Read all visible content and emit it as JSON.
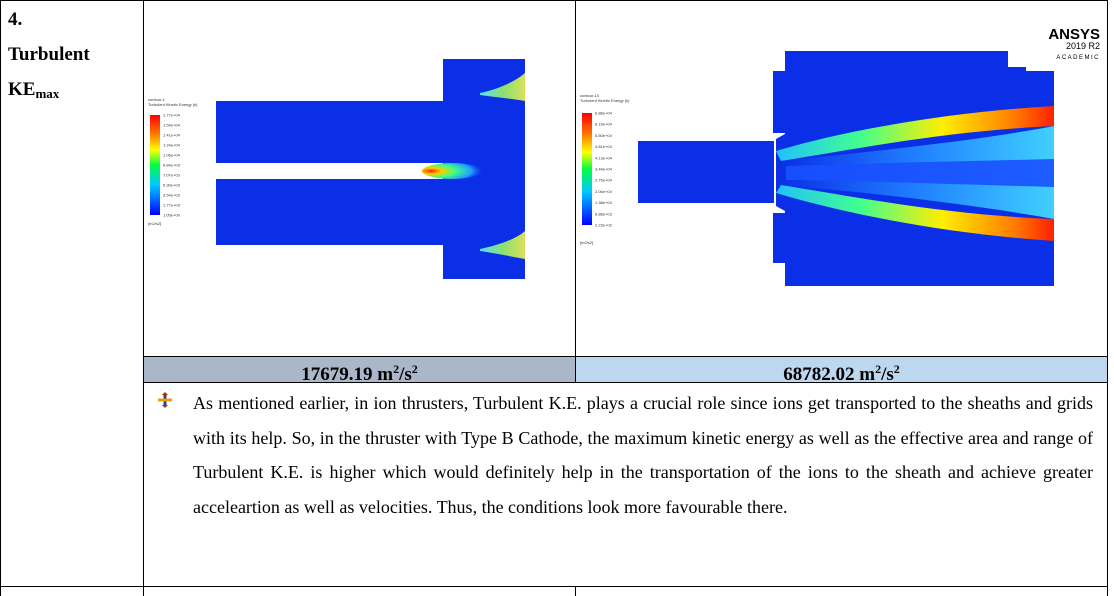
{
  "row_label": {
    "number": "4.",
    "line1": "Turbulent",
    "line2_main": "KE",
    "line2_sub": "max"
  },
  "left_contour": {
    "title_line1": "contour-1",
    "title_line2": "Turbulent Kinetic Energy (k)",
    "legend_values": [
      "1.77e+04",
      "1.59e+04",
      "1.41e+04",
      "1.24e+04",
      "1.06e+04",
      "8.84e+03",
      "7.07e+03",
      "5.30e+03",
      "3.54e+03",
      "1.77e+03",
      "1.05e+00"
    ],
    "unit": "[m2/s2]"
  },
  "right_contour": {
    "title_line1": "contour-10",
    "title_line2": "Turbulent Kinetic Energy (k)",
    "legend_values": [
      "6.88e+04",
      "6.19e+04",
      "5.50e+04",
      "4.81e+04",
      "4.13e+04",
      "3.44e+04",
      "2.75e+04",
      "2.06e+04",
      "1.38e+04",
      "6.88e+03",
      "2.23e+02"
    ],
    "unit": "[m2/s2]",
    "logo": {
      "brand": "ANSYS",
      "version": "2019 R2",
      "edition": "ACADEMIC"
    }
  },
  "values": {
    "left": {
      "number": "17679.19 m",
      "exp": "2",
      "mid": "/s",
      "exp2": "2"
    },
    "right": {
      "number": "68782.02 m",
      "exp": "2",
      "mid": "/s",
      "exp2": "2"
    }
  },
  "colors": {
    "left_value_bg": "#a9b7c8",
    "right_value_bg": "#bdd7ee",
    "contour_blue": "#0a2fe6",
    "contour_red": "#ff2000"
  },
  "paragraph": "As mentioned earlier, in ion thrusters, Turbulent K.E. plays a crucial role since ions get transported to the sheaths and grids with its help. So, in the thruster with Type B Cathode, the maximum kinetic energy as well as the effective area and range of Turbulent K.E. is higher which would definitely help in the transportation of the ions to the sheath and achieve greater acceleartion as well as velocities. Thus, the conditions look more favourable there.",
  "bullet_icon": "plus-arrows-icon"
}
